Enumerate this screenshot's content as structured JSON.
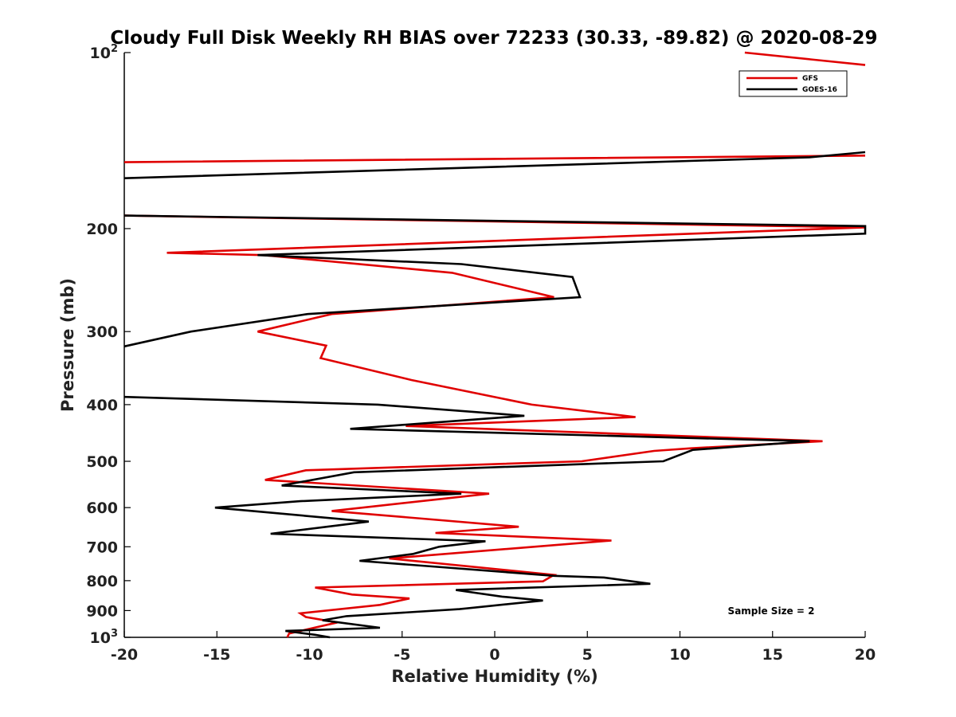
{
  "chart_data": {
    "type": "line",
    "title": "Cloudy Full Disk Weekly RH BIAS over 72233 (30.33, -89.82) @ 2020-08-29",
    "xlabel": "Relative Humidity (%)",
    "ylabel": "Pressure (mb)",
    "xlim": [
      -20,
      20
    ],
    "ylim": [
      100,
      1000
    ],
    "yscale": "log",
    "yreversed": true,
    "grid": false,
    "legend_position": "top-right",
    "xticks": [
      -20,
      -15,
      -10,
      -5,
      0,
      5,
      10,
      15,
      20
    ],
    "xtick_labels": [
      "-20",
      "-15",
      "-10",
      "-5",
      "0",
      "5",
      "10",
      "15",
      "20"
    ],
    "yticks": [
      100,
      200,
      300,
      400,
      500,
      600,
      700,
      800,
      900,
      1000
    ],
    "ytick_labels": [
      {
        "base": "10",
        "exp": "2"
      },
      {
        "base": "200",
        "exp": ""
      },
      {
        "base": "300",
        "exp": ""
      },
      {
        "base": "400",
        "exp": ""
      },
      {
        "base": "500",
        "exp": ""
      },
      {
        "base": "600",
        "exp": ""
      },
      {
        "base": "700",
        "exp": ""
      },
      {
        "base": "800",
        "exp": ""
      },
      {
        "base": "900",
        "exp": ""
      },
      {
        "base": "10",
        "exp": "3"
      }
    ],
    "annotation": "Sample Size = 2",
    "series": [
      {
        "name": "GFS",
        "color": "#e00000",
        "points": [
          [
            13.5,
            100
          ],
          [
            20,
            105
          ],
          [
            null,
            null
          ],
          [
            20,
            150
          ],
          [
            -20,
            154
          ],
          [
            null,
            null
          ],
          [
            -20,
            190
          ],
          [
            20,
            199
          ],
          [
            -17.7,
            220
          ],
          [
            -12.5,
            222
          ],
          [
            -2.3,
            238
          ],
          [
            3.2,
            262
          ],
          [
            -8.8,
            280
          ],
          [
            -12.8,
            300
          ],
          [
            -9.1,
            317
          ],
          [
            -9.4,
            333
          ],
          [
            -4.5,
            363
          ],
          [
            2.0,
            400
          ],
          [
            7.6,
            420
          ],
          [
            -4.8,
            435
          ],
          [
            17.7,
            462
          ],
          [
            10.6,
            475
          ],
          [
            8.6,
            480
          ],
          [
            4.7,
            500
          ],
          [
            -10.2,
            518
          ],
          [
            -12.4,
            538
          ],
          [
            -0.3,
            568
          ],
          [
            -8.8,
            608
          ],
          [
            1.3,
            647
          ],
          [
            -3.2,
            663
          ],
          [
            6.3,
            683
          ],
          [
            -5.7,
            733
          ],
          [
            3.2,
            782
          ],
          [
            2.6,
            802
          ],
          [
            -9.7,
            822
          ],
          [
            -7.7,
            845
          ],
          [
            -4.6,
            858
          ],
          [
            -6.2,
            880
          ],
          [
            -10.5,
            910
          ],
          [
            -10.2,
            923
          ],
          [
            -8.5,
            943
          ],
          [
            -11.1,
            985
          ],
          [
            -11.2,
            1000
          ]
        ]
      },
      {
        "name": "GOES-16",
        "color": "#000000",
        "points": [
          [
            20,
            148
          ],
          [
            17,
            151
          ],
          [
            -20,
            164
          ],
          [
            null,
            null
          ],
          [
            -20,
            190
          ],
          [
            20,
            198
          ],
          [
            20,
            204
          ],
          [
            -12.8,
            222
          ],
          [
            -1.8,
            230
          ],
          [
            4.2,
            242
          ],
          [
            4.6,
            262
          ],
          [
            -10.1,
            280
          ],
          [
            -16.4,
            300
          ],
          [
            -20,
            318
          ],
          [
            null,
            null
          ],
          [
            -20,
            388
          ],
          [
            -6.3,
            400
          ],
          [
            1.6,
            418
          ],
          [
            -7.8,
            440
          ],
          [
            17.0,
            462
          ],
          [
            10.7,
            478
          ],
          [
            9.1,
            500
          ],
          [
            -7.6,
            522
          ],
          [
            -11.5,
            550
          ],
          [
            -1.8,
            568
          ],
          [
            -10.5,
            585
          ],
          [
            -15.1,
            600
          ],
          [
            -6.8,
            634
          ],
          [
            -12.1,
            665
          ],
          [
            -0.5,
            685
          ],
          [
            -3.0,
            700
          ],
          [
            -4.4,
            720
          ],
          [
            -7.3,
            740
          ],
          [
            3.2,
            785
          ],
          [
            5.9,
            790
          ],
          [
            8.4,
            810
          ],
          [
            -2.1,
            830
          ],
          [
            0.4,
            852
          ],
          [
            2.6,
            865
          ],
          [
            -1.9,
            895
          ],
          [
            -8.0,
            920
          ],
          [
            -9.3,
            935
          ],
          [
            -6.2,
            963
          ],
          [
            -11.3,
            975
          ],
          [
            -9.7,
            990
          ],
          [
            -8.9,
            1000
          ]
        ]
      }
    ]
  }
}
